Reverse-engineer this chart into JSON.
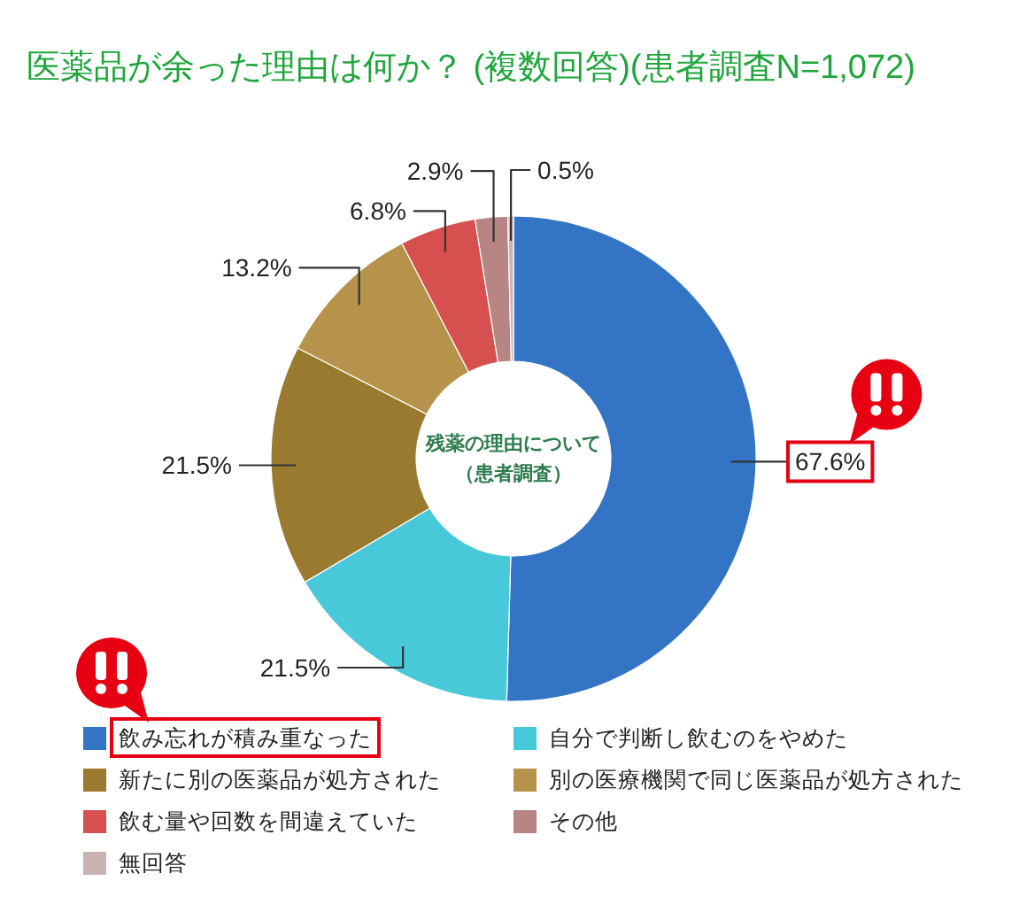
{
  "chart_data": {
    "type": "donut",
    "title": "医薬品が余った理由は何か？ (複数回答)(患者調査N=1,072)",
    "categories": [
      "飲み忘れが積み重なった",
      "自分で判断し飲むのをやめた",
      "新たに別の医薬品が処方された",
      "別の医療機関で同じ医薬品が処方された",
      "飲む量や回数を間違えていた",
      "その他",
      "無回答"
    ],
    "values": [
      67.6,
      21.5,
      21.5,
      13.2,
      6.8,
      2.9,
      0.5
    ],
    "colors": [
      "#3375c4",
      "#47c9d9",
      "#9a7a2e",
      "#b5934b",
      "#d65050",
      "#b88585",
      "#c9b3b3"
    ],
    "value_labels": [
      "67.6%",
      "21.5%",
      "21.5%",
      "13.2%",
      "6.8%",
      "2.9%",
      "0.5%"
    ],
    "annotations": [
      "残薬の理由について",
      "（患者調査）"
    ],
    "legend": "bottom"
  }
}
